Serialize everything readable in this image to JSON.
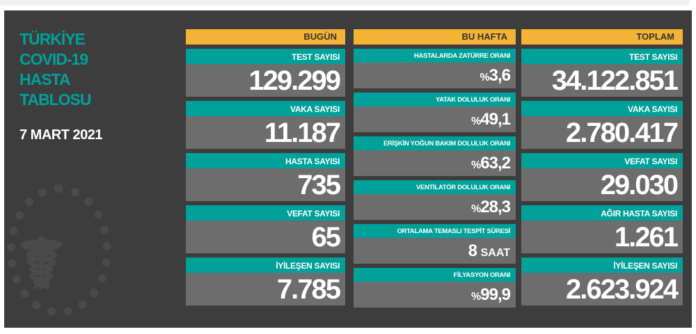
{
  "title": [
    "TÜRKİYE",
    "COVID-19",
    "HASTA",
    "TABLOSU"
  ],
  "date": "7 MART 2021",
  "colors": {
    "teal": "#00a19a",
    "yellow": "#f5b335",
    "panel": "#3d3d3d",
    "value_bg": "#6d6d6d"
  },
  "today": {
    "header": "BUGÜN",
    "items": [
      {
        "label": "TEST SAYISI",
        "value": "129.299"
      },
      {
        "label": "VAKA SAYISI",
        "value": "11.187"
      },
      {
        "label": "HASTA SAYISI",
        "value": "735"
      },
      {
        "label": "VEFAT SAYISI",
        "value": "65"
      },
      {
        "label": "İYİLEŞEN SAYISI",
        "value": "7.785"
      }
    ]
  },
  "week": {
    "header": "BU HAFTA",
    "items": [
      {
        "label": "HASTALARDA ZATÜRRE ORANI",
        "prefix": "%",
        "value": "3,6"
      },
      {
        "label": "YATAK DOLULUK ORANI",
        "prefix": "%",
        "value": "49,1"
      },
      {
        "label": "ERİŞKİN YOĞUN BAKIM DOLULUK ORANI",
        "prefix": "%",
        "value": "63,2"
      },
      {
        "label": "VENTİLATÖR DOLULUK ORANI",
        "prefix": "%",
        "value": "28,3"
      },
      {
        "label": "ORTALAMA TEMASLI TESPİT SÜRESİ",
        "value": "8",
        "unit": "SAAT"
      },
      {
        "label": "FİLYASYON ORANI",
        "prefix": "%",
        "value": "99,9"
      }
    ]
  },
  "total": {
    "header": "TOPLAM",
    "items": [
      {
        "label": "TEST SAYISI",
        "value": "34.122.851"
      },
      {
        "label": "VAKA SAYISI",
        "value": "2.780.417"
      },
      {
        "label": "VEFAT SAYISI",
        "value": "29.030"
      },
      {
        "label": "AĞIR HASTA SAYISI",
        "value": "1.261"
      },
      {
        "label": "İYİLEŞEN SAYISI",
        "value": "2.623.924"
      }
    ]
  }
}
